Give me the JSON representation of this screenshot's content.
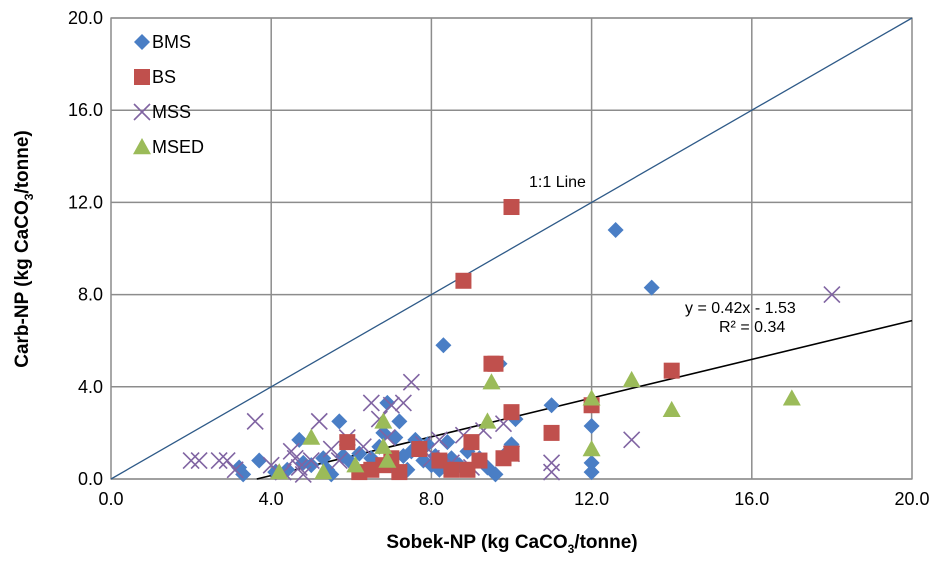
{
  "chart_data": {
    "type": "scatter",
    "xlabel": "Sobek-NP (kg CaCO",
    "xlabel_sub": "3",
    "xlabel_tail": "/tonne)",
    "ylabel": "Carb-NP (kg CaCO",
    "ylabel_sub": "3",
    "ylabel_tail": "/tonne)",
    "xlim": [
      0,
      20
    ],
    "ylim": [
      0,
      20
    ],
    "x_ticks": [
      "0.0",
      "4.0",
      "8.0",
      "12.0",
      "16.0",
      "20.0"
    ],
    "y_ticks": [
      "0.0",
      "4.0",
      "8.0",
      "12.0",
      "16.0",
      "20.0"
    ],
    "grid": true,
    "legend_position": "top-left",
    "colors": {
      "BMS": "#4a7ec5",
      "BS": "#c0504d",
      "MSS": "#8064a2",
      "MSED": "#9bbb59",
      "one_to_one": "#2e5a88",
      "trend": "#000000",
      "grid": "#8c8c8c"
    },
    "series": [
      {
        "name": "BMS",
        "marker": "diamond",
        "points": [
          [
            3.2,
            0.5
          ],
          [
            3.3,
            0.2
          ],
          [
            3.7,
            0.8
          ],
          [
            4.1,
            0.3
          ],
          [
            4.4,
            0.4
          ],
          [
            4.7,
            1.7
          ],
          [
            4.8,
            0.7
          ],
          [
            5.0,
            0.6
          ],
          [
            5.3,
            0.9
          ],
          [
            5.4,
            0.4
          ],
          [
            5.5,
            0.2
          ],
          [
            5.7,
            2.5
          ],
          [
            5.8,
            1.0
          ],
          [
            6.0,
            0.7
          ],
          [
            6.2,
            1.1
          ],
          [
            6.4,
            0.4
          ],
          [
            6.5,
            0.9
          ],
          [
            6.7,
            1.4
          ],
          [
            6.8,
            2.0
          ],
          [
            6.9,
            3.3
          ],
          [
            7.0,
            0.6
          ],
          [
            7.1,
            1.8
          ],
          [
            7.2,
            2.5
          ],
          [
            7.3,
            1.0
          ],
          [
            7.4,
            0.4
          ],
          [
            7.5,
            1.2
          ],
          [
            7.6,
            1.7
          ],
          [
            7.8,
            0.8
          ],
          [
            7.9,
            1.5
          ],
          [
            8.0,
            0.6
          ],
          [
            8.1,
            1.0
          ],
          [
            8.2,
            0.4
          ],
          [
            8.3,
            5.8
          ],
          [
            8.4,
            1.6
          ],
          [
            8.5,
            0.9
          ],
          [
            8.7,
            0.6
          ],
          [
            8.9,
            1.2
          ],
          [
            9.2,
            0.9
          ],
          [
            9.4,
            0.5
          ],
          [
            9.6,
            0.2
          ],
          [
            9.7,
            5.0
          ],
          [
            9.8,
            1.0
          ],
          [
            10.0,
            1.5
          ],
          [
            10.1,
            2.6
          ],
          [
            11.0,
            3.2
          ],
          [
            12.0,
            2.3
          ],
          [
            12.0,
            0.7
          ],
          [
            12.0,
            0.3
          ],
          [
            12.6,
            10.8
          ],
          [
            13.5,
            8.3
          ]
        ]
      },
      {
        "name": "BS",
        "marker": "square",
        "points": [
          [
            5.9,
            1.6
          ],
          [
            6.2,
            0.3
          ],
          [
            6.5,
            0.4
          ],
          [
            6.8,
            0.6
          ],
          [
            7.0,
            0.9
          ],
          [
            7.2,
            0.3
          ],
          [
            7.7,
            1.3
          ],
          [
            8.2,
            0.8
          ],
          [
            8.5,
            0.4
          ],
          [
            8.8,
            8.6
          ],
          [
            8.9,
            0.4
          ],
          [
            9.0,
            1.6
          ],
          [
            9.2,
            0.8
          ],
          [
            9.5,
            5.0
          ],
          [
            9.6,
            5.0
          ],
          [
            9.8,
            0.9
          ],
          [
            10.0,
            1.1
          ],
          [
            10.0,
            2.9
          ],
          [
            10.0,
            11.8
          ],
          [
            11.0,
            2.0
          ],
          [
            12.0,
            3.2
          ],
          [
            14.0,
            4.7
          ]
        ]
      },
      {
        "name": "MSS",
        "marker": "x",
        "points": [
          [
            2.0,
            0.8
          ],
          [
            2.2,
            0.8
          ],
          [
            2.7,
            0.8
          ],
          [
            2.9,
            0.8
          ],
          [
            3.1,
            0.4
          ],
          [
            3.6,
            2.5
          ],
          [
            4.0,
            0.6
          ],
          [
            4.3,
            0.3
          ],
          [
            4.5,
            1.2
          ],
          [
            4.6,
            0.9
          ],
          [
            4.7,
            0.5
          ],
          [
            4.8,
            0.2
          ],
          [
            5.0,
            0.8
          ],
          [
            5.2,
            2.5
          ],
          [
            5.5,
            1.3
          ],
          [
            5.7,
            0.8
          ],
          [
            5.9,
            1.8
          ],
          [
            6.3,
            1.4
          ],
          [
            6.5,
            3.3
          ],
          [
            6.7,
            2.6
          ],
          [
            6.9,
            1.8
          ],
          [
            7.0,
            3.2
          ],
          [
            7.3,
            3.3
          ],
          [
            7.5,
            4.2
          ],
          [
            7.8,
            1.5
          ],
          [
            8.0,
            0.9
          ],
          [
            8.2,
            1.7
          ],
          [
            8.5,
            0.7
          ],
          [
            8.8,
            1.9
          ],
          [
            9.0,
            0.5
          ],
          [
            9.3,
            2.1
          ],
          [
            9.8,
            2.4
          ],
          [
            10.0,
            1.1
          ],
          [
            11.0,
            0.7
          ],
          [
            11.0,
            0.3
          ],
          [
            13.0,
            1.7
          ],
          [
            18.0,
            8.0
          ]
        ]
      },
      {
        "name": "MSED",
        "marker": "triangle",
        "points": [
          [
            4.2,
            0.3
          ],
          [
            5.0,
            1.8
          ],
          [
            5.3,
            0.3
          ],
          [
            6.1,
            0.6
          ],
          [
            6.8,
            2.5
          ],
          [
            6.8,
            1.4
          ],
          [
            6.9,
            0.8
          ],
          [
            9.4,
            2.5
          ],
          [
            9.5,
            4.2
          ],
          [
            12.0,
            3.5
          ],
          [
            12.0,
            1.3
          ],
          [
            13.0,
            4.3
          ],
          [
            14.0,
            3.0
          ],
          [
            17.0,
            3.5
          ]
        ]
      }
    ],
    "lines": [
      {
        "name": "1:1 Line",
        "label": "1:1 Line",
        "x": [
          0,
          20
        ],
        "y": [
          0,
          20
        ]
      },
      {
        "name": "trend",
        "slope": 0.42,
        "intercept": -1.53,
        "x": [
          3.64,
          20
        ],
        "equation": "y = 0.42x - 1.53",
        "r2": "R² = 0.34"
      }
    ]
  }
}
